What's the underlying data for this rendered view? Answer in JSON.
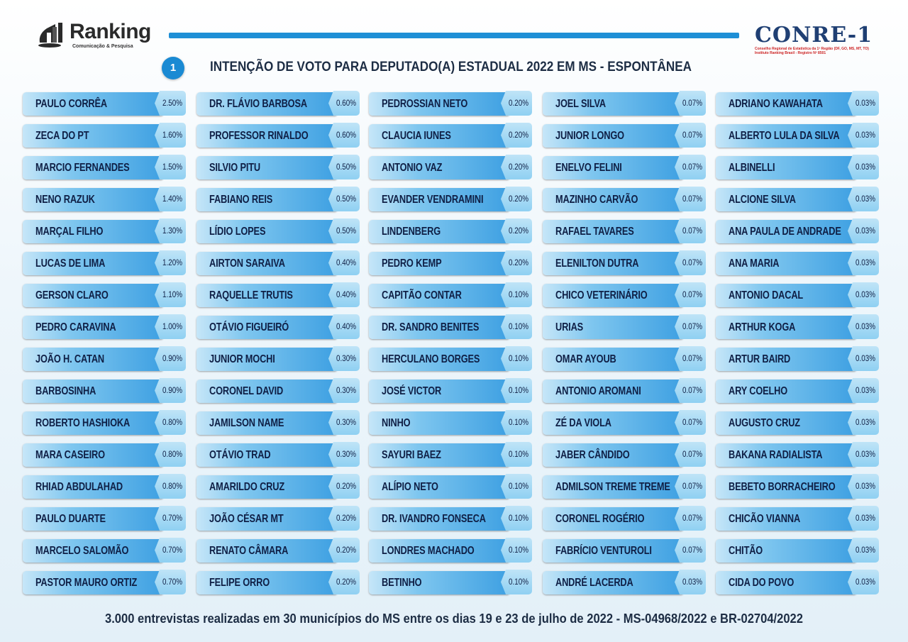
{
  "header": {
    "logo_left_text": "Ranking",
    "logo_left_sub": "Comunicação & Pesquisa",
    "logo_right_text": "CONRE-1",
    "logo_right_sub1": "Conselho Regional de Estatística da 1ª Região (DF, GO, MS, MT, TO)",
    "logo_right_sub2": "Instituto Ranking Brasil - Registro Nº 8501",
    "badge": "1",
    "title": "INTENÇÃO DE VOTO PARA DEPUTADO(A) ESTADUAL 2022 EM MS - ESPONTÂNEA"
  },
  "footer": "3.000 entrevistas realizadas em 30 municípios do MS entre os dias 19 e 23 de julho de 2022 - MS-04968/2022 e BR-02704/2022",
  "colors": {
    "accent": "#1e8fd6",
    "text_dark": "#0f1f45"
  },
  "chart_data": {
    "type": "table",
    "title": "INTENÇÃO DE VOTO PARA DEPUTADO(A) ESTADUAL 2022 EM MS - ESPONTÂNEA",
    "columns": [
      [
        {
          "name": "PAULO CORRÊA",
          "value": "2.50%"
        },
        {
          "name": "ZECA DO PT",
          "value": "1.60%"
        },
        {
          "name": "MARCIO FERNANDES",
          "value": "1.50%"
        },
        {
          "name": "NENO RAZUK",
          "value": "1.40%"
        },
        {
          "name": "MARÇAL FILHO",
          "value": "1.30%"
        },
        {
          "name": "LUCAS DE LIMA",
          "value": "1.20%"
        },
        {
          "name": "GERSON CLARO",
          "value": "1.10%"
        },
        {
          "name": "PEDRO CARAVINA",
          "value": "1.00%"
        },
        {
          "name": "JOÃO H. CATAN",
          "value": "0.90%"
        },
        {
          "name": "BARBOSINHA",
          "value": "0.90%"
        },
        {
          "name": "ROBERTO HASHIOKA",
          "value": "0.80%"
        },
        {
          "name": "MARA CASEIRO",
          "value": "0.80%"
        },
        {
          "name": "RHIAD ABDULAHAD",
          "value": "0.80%"
        },
        {
          "name": "PAULO DUARTE",
          "value": "0.70%"
        },
        {
          "name": "MARCELO SALOMÃO",
          "value": "0.70%"
        },
        {
          "name": "PASTOR MAURO ORTIZ",
          "value": "0.70%"
        }
      ],
      [
        {
          "name": "DR. FLÁVIO BARBOSA",
          "value": "0.60%"
        },
        {
          "name": "PROFESSOR RINALDO",
          "value": "0.60%"
        },
        {
          "name": "SILVIO PITU",
          "value": "0.50%"
        },
        {
          "name": "FABIANO REIS",
          "value": "0.50%"
        },
        {
          "name": "LÍDIO LOPES",
          "value": "0.50%"
        },
        {
          "name": "AIRTON SARAIVA",
          "value": "0.40%"
        },
        {
          "name": "RAQUELLE TRUTIS",
          "value": "0.40%"
        },
        {
          "name": "OTÁVIO FIGUEIRÓ",
          "value": "0.40%"
        },
        {
          "name": "JUNIOR MOCHI",
          "value": "0.30%"
        },
        {
          "name": "CORONEL DAVID",
          "value": "0.30%"
        },
        {
          "name": "JAMILSON NAME",
          "value": "0.30%"
        },
        {
          "name": "OTÁVIO TRAD",
          "value": "0.30%"
        },
        {
          "name": "AMARILDO CRUZ",
          "value": "0.20%"
        },
        {
          "name": "JOÃO CÉSAR MT",
          "value": "0.20%"
        },
        {
          "name": "RENATO CÂMARA",
          "value": "0.20%"
        },
        {
          "name": "FELIPE ORRO",
          "value": "0.20%"
        }
      ],
      [
        {
          "name": "PEDROSSIAN NETO",
          "value": "0.20%"
        },
        {
          "name": "CLAUCIA IUNES",
          "value": "0.20%"
        },
        {
          "name": "ANTONIO VAZ",
          "value": "0.20%"
        },
        {
          "name": "EVANDER VENDRAMINI",
          "value": "0.20%"
        },
        {
          "name": "LINDENBERG",
          "value": "0.20%"
        },
        {
          "name": "PEDRO KEMP",
          "value": "0.20%"
        },
        {
          "name": "CAPITÃO CONTAR",
          "value": "0.10%"
        },
        {
          "name": "DR. SANDRO BENITES",
          "value": "0.10%"
        },
        {
          "name": "HERCULANO BORGES",
          "value": "0.10%"
        },
        {
          "name": "JOSÉ VICTOR",
          "value": "0.10%"
        },
        {
          "name": "NINHO",
          "value": "0.10%"
        },
        {
          "name": "SAYURI BAEZ",
          "value": "0.10%"
        },
        {
          "name": "ALÍPIO NETO",
          "value": "0.10%"
        },
        {
          "name": "DR. IVANDRO FONSECA",
          "value": "0.10%"
        },
        {
          "name": "LONDRES MACHADO",
          "value": "0.10%"
        },
        {
          "name": "BETINHO",
          "value": "0.10%"
        }
      ],
      [
        {
          "name": "JOEL SILVA",
          "value": "0.07%"
        },
        {
          "name": "JUNIOR LONGO",
          "value": "0.07%"
        },
        {
          "name": "ENELVO FELINI",
          "value": "0.07%"
        },
        {
          "name": "MAZINHO CARVÃO",
          "value": "0.07%"
        },
        {
          "name": "RAFAEL TAVARES",
          "value": "0.07%"
        },
        {
          "name": "ELENILTON DUTRA",
          "value": "0.07%"
        },
        {
          "name": "CHICO VETERINÁRIO",
          "value": "0.07%"
        },
        {
          "name": "URIAS",
          "value": "0.07%"
        },
        {
          "name": "OMAR AYOUB",
          "value": "0.07%"
        },
        {
          "name": "ANTONIO AROMANI",
          "value": "0.07%"
        },
        {
          "name": "ZÉ DA VIOLA",
          "value": "0.07%"
        },
        {
          "name": "JABER CÂNDIDO",
          "value": "0.07%"
        },
        {
          "name": "ADMILSON TREME TREME",
          "value": "0.07%"
        },
        {
          "name": "CORONEL ROGÉRIO",
          "value": "0.07%"
        },
        {
          "name": "FABRÍCIO VENTUROLI",
          "value": "0.07%"
        },
        {
          "name": "ANDRÉ LACERDA",
          "value": "0.03%"
        }
      ],
      [
        {
          "name": "ADRIANO KAWAHATA",
          "value": "0.03%"
        },
        {
          "name": "ALBERTO LULA DA SILVA",
          "value": "0.03%"
        },
        {
          "name": "ALBINELLI",
          "value": "0.03%"
        },
        {
          "name": "ALCIONE SILVA",
          "value": "0.03%"
        },
        {
          "name": "ANA PAULA DE ANDRADE",
          "value": "0.03%"
        },
        {
          "name": "ANA MARIA",
          "value": "0.03%"
        },
        {
          "name": "ANTONIO DACAL",
          "value": "0.03%"
        },
        {
          "name": "ARTHUR KOGA",
          "value": "0.03%"
        },
        {
          "name": "ARTUR BAIRD",
          "value": "0.03%"
        },
        {
          "name": "ARY COELHO",
          "value": "0.03%"
        },
        {
          "name": "AUGUSTO CRUZ",
          "value": "0.03%"
        },
        {
          "name": "BAKANA RADIALISTA",
          "value": "0.03%"
        },
        {
          "name": "BEBETO BORRACHEIRO",
          "value": "0.03%"
        },
        {
          "name": "CHICÃO VIANNA",
          "value": "0.03%"
        },
        {
          "name": "CHITÃO",
          "value": "0.03%"
        },
        {
          "name": "CIDA DO POVO",
          "value": "0.03%"
        }
      ]
    ]
  }
}
